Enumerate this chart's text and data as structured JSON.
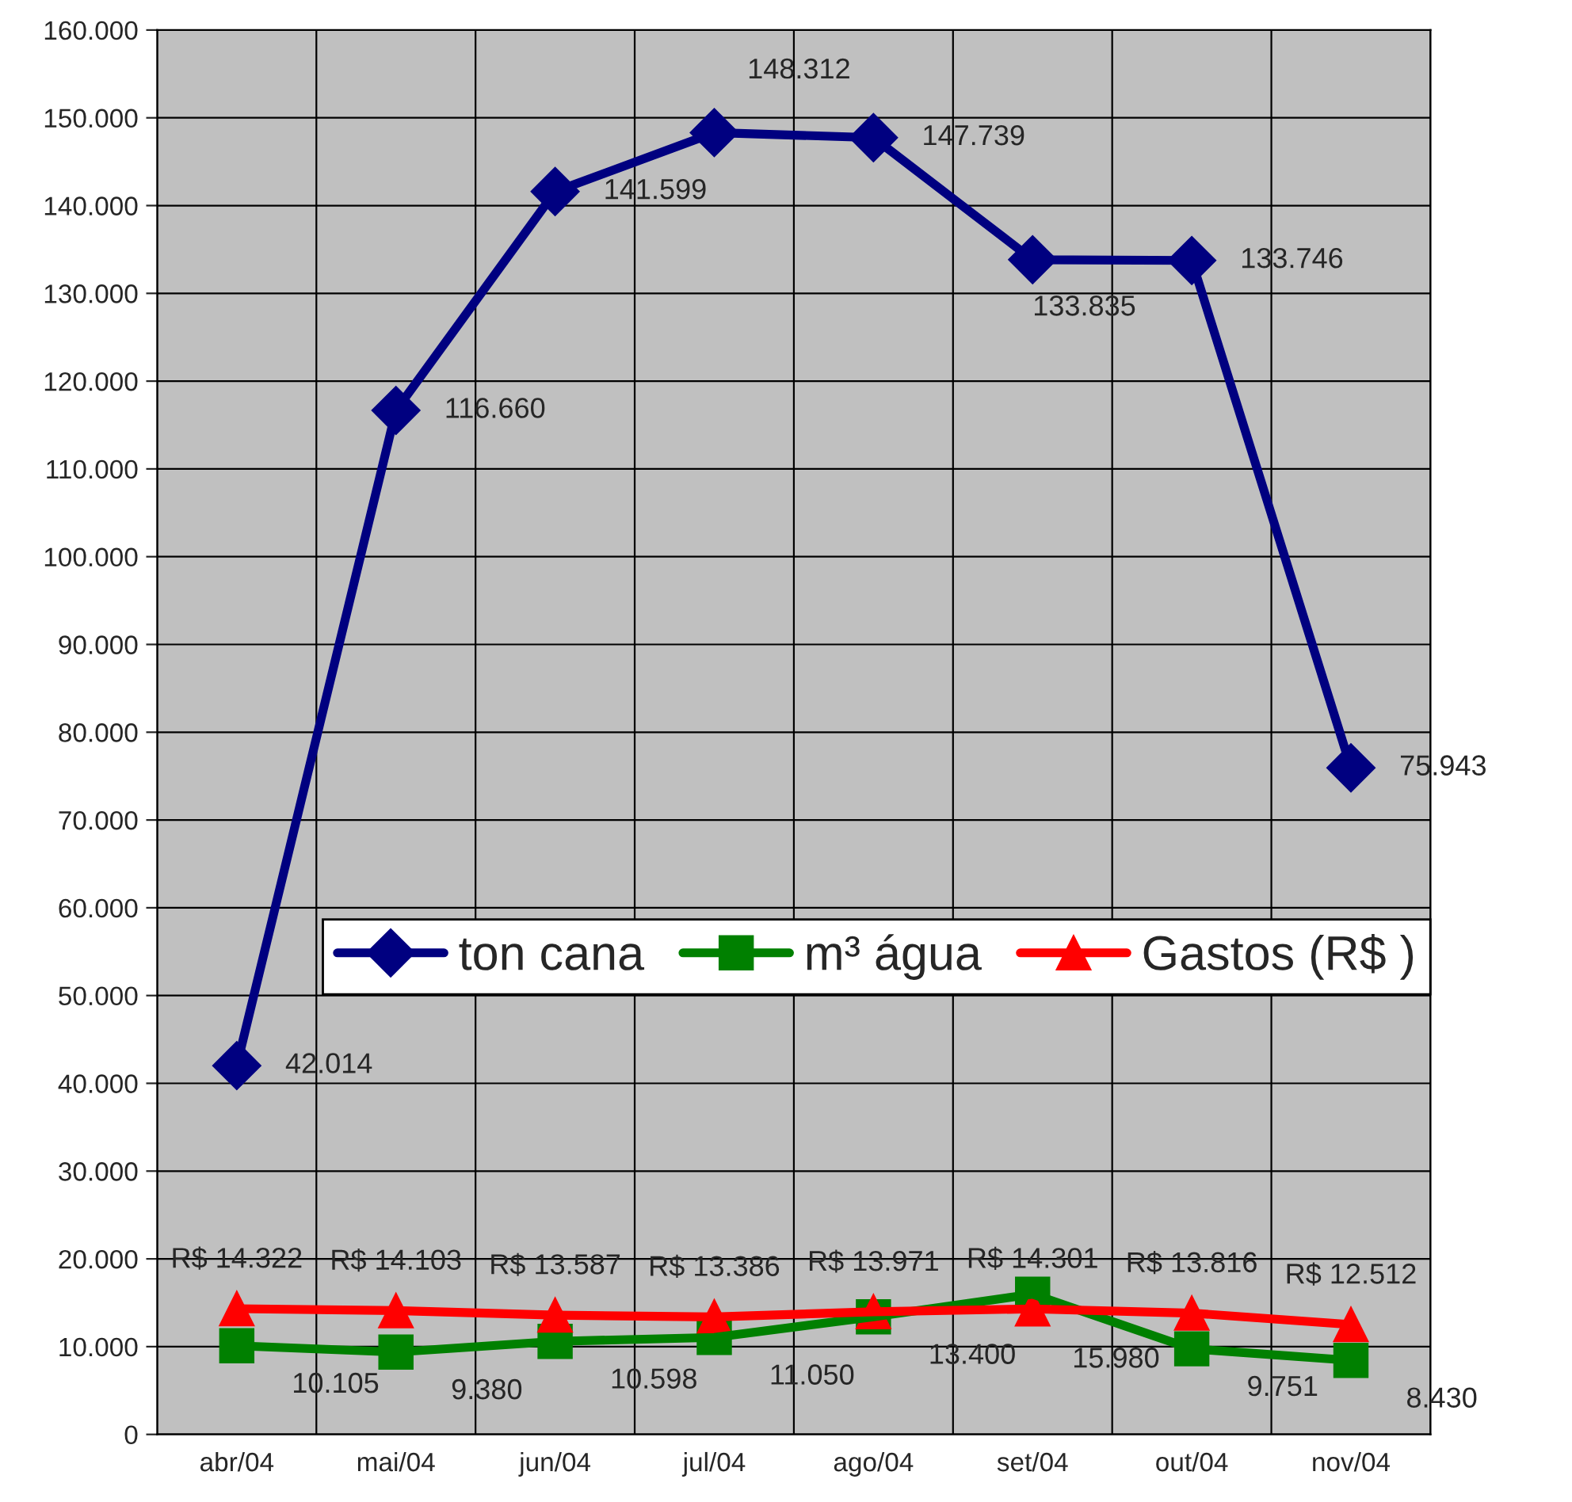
{
  "chart_data": {
    "type": "line",
    "categories": [
      "abr/04",
      "mai/04",
      "jun/04",
      "jul/04",
      "ago/04",
      "set/04",
      "out/04",
      "nov/04"
    ],
    "series": [
      {
        "name": "ton cana",
        "color": "#000080",
        "marker": "diamond",
        "values": [
          42014,
          116660,
          141599,
          148312,
          147739,
          133835,
          133746,
          75943
        ],
        "value_labels": [
          "42.014",
          "116.660",
          "141.599",
          "148.312",
          "147.739",
          "133.835",
          "133.746",
          "75.943"
        ]
      },
      {
        "name": "m³ água",
        "color": "#008000",
        "marker": "square",
        "values": [
          10105,
          9380,
          10598,
          11050,
          13400,
          15980,
          9751,
          8430
        ],
        "value_labels": [
          "10.105",
          "9.380",
          "10.598",
          "11.050",
          "13.400",
          "15.980",
          "9.751",
          "8.430"
        ]
      },
      {
        "name": "Gastos (R$ )",
        "color": "#ff0000",
        "marker": "triangle",
        "values": [
          14322,
          14103,
          13587,
          13386,
          13971,
          14301,
          13816,
          12512
        ],
        "value_labels": [
          "R$ 14.322",
          "R$ 14.103",
          "R$ 13.587",
          "R$ 13.386",
          "R$ 13.971",
          "R$ 14.301",
          "R$ 13.816",
          "R$ 12.512"
        ]
      }
    ],
    "ylim": [
      0,
      160000
    ],
    "yticks": [
      {
        "value": 0,
        "label": "0"
      },
      {
        "value": 10000,
        "label": "10.000"
      },
      {
        "value": 20000,
        "label": "20.000"
      },
      {
        "value": 30000,
        "label": "30.000"
      },
      {
        "value": 40000,
        "label": "40.000"
      },
      {
        "value": 50000,
        "label": "50.000"
      },
      {
        "value": 60000,
        "label": "60.000"
      },
      {
        "value": 70000,
        "label": "70.000"
      },
      {
        "value": 80000,
        "label": "80.000"
      },
      {
        "value": 90000,
        "label": "90.000"
      },
      {
        "value": 100000,
        "label": "100.000"
      },
      {
        "value": 110000,
        "label": "110.000"
      },
      {
        "value": 120000,
        "label": "120.000"
      },
      {
        "value": 130000,
        "label": "130.000"
      },
      {
        "value": 140000,
        "label": "140.000"
      },
      {
        "value": 150000,
        "label": "150.000"
      },
      {
        "value": 160000,
        "label": "160.000"
      }
    ],
    "grid": true,
    "legend": "center",
    "line_style": "solid"
  }
}
